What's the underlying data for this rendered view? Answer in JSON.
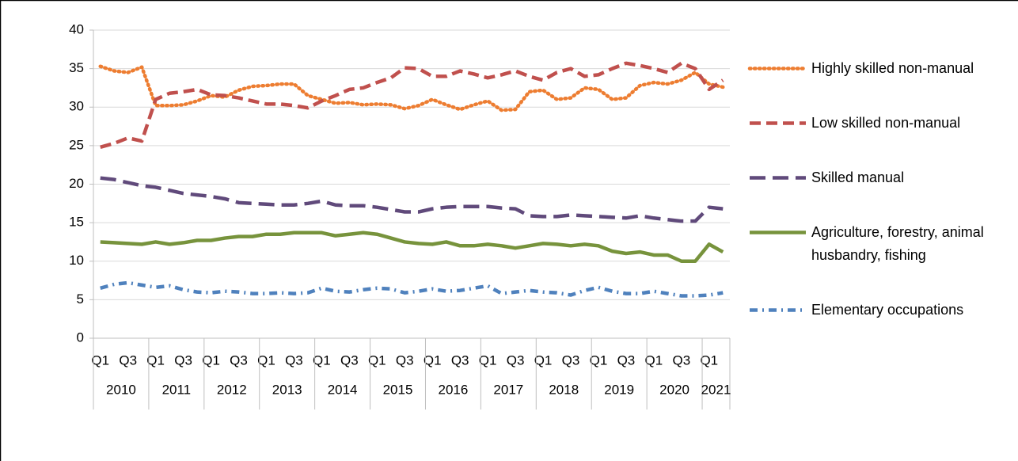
{
  "chart_data": {
    "type": "line",
    "categories": [
      "Q1",
      null,
      "Q3",
      null,
      "Q1",
      null,
      "Q3",
      null,
      "Q1",
      null,
      "Q3",
      null,
      "Q1",
      null,
      "Q3",
      null,
      "Q1",
      null,
      "Q3",
      null,
      "Q1",
      null,
      "Q3",
      null,
      "Q1",
      null,
      "Q3",
      null,
      "Q1",
      null,
      "Q3",
      null,
      "Q1",
      null,
      "Q3",
      null,
      "Q1",
      null,
      "Q3",
      null,
      "Q1",
      null,
      "Q3",
      null,
      "Q1",
      null
    ],
    "category_groups": [
      "2010",
      "2011",
      "2012",
      "2013",
      "2014",
      "2015",
      "2016",
      "2017",
      "2018",
      "2019",
      "2020",
      "2021"
    ],
    "ylim": [
      0,
      40
    ],
    "yticks": [
      0,
      5,
      10,
      15,
      20,
      25,
      30,
      35,
      40
    ],
    "grid": true,
    "legend": "right",
    "series": [
      {
        "name": "Highly skilled non-manual",
        "color": "#ED7D31",
        "dash": "dotted",
        "values": [
          35.3,
          34.7,
          34.5,
          35.2,
          30.2,
          30.2,
          30.3,
          30.8,
          31.5,
          31.3,
          32.2,
          32.7,
          32.8,
          33,
          33,
          31.5,
          31,
          30.5,
          30.6,
          30.3,
          30.4,
          30.3,
          29.8,
          30.2,
          31,
          30.3,
          29.7,
          30.3,
          30.8,
          29.6,
          29.7,
          32,
          32.2,
          31,
          31.2,
          32.5,
          32.3,
          31,
          31.2,
          32.8,
          33.2,
          33,
          33.5,
          34.5,
          33,
          32.6
        ]
      },
      {
        "name": "Low skilled non-manual",
        "color": "#C0504D",
        "dash": "dashed",
        "values": [
          24.8,
          25.3,
          26,
          25.6,
          31,
          31.8,
          32,
          32.3,
          31.6,
          31.5,
          31.2,
          30.8,
          30.4,
          30.4,
          30.2,
          29.9,
          30.8,
          31.5,
          32.3,
          32.5,
          33.2,
          33.8,
          35.1,
          35,
          34,
          34,
          34.7,
          34.3,
          33.8,
          34.2,
          34.7,
          34,
          33.5,
          34.5,
          35,
          34,
          34.2,
          35,
          35.7,
          35.4,
          35,
          34.5,
          35.7,
          35,
          32.3,
          33.5
        ]
      },
      {
        "name": "Skilled manual",
        "color": "#604A7B",
        "dash": "longdash",
        "values": [
          20.8,
          20.6,
          20.2,
          19.8,
          19.6,
          19.2,
          18.8,
          18.6,
          18.4,
          18.1,
          17.6,
          17.5,
          17.4,
          17.3,
          17.3,
          17.5,
          17.8,
          17.3,
          17.2,
          17.2,
          17,
          16.7,
          16.4,
          16.4,
          16.8,
          17,
          17.1,
          17.1,
          17.1,
          16.9,
          16.8,
          15.9,
          15.8,
          15.8,
          16,
          15.9,
          15.8,
          15.7,
          15.6,
          15.9,
          15.6,
          15.4,
          15.2,
          15.2,
          17,
          16.8
        ]
      },
      {
        "name": "Agriculture, forestry, animal husbandry, fishing",
        "color": "#77933C",
        "dash": "solid",
        "values": [
          12.5,
          12.4,
          12.3,
          12.2,
          12.5,
          12.2,
          12.4,
          12.7,
          12.7,
          13,
          13.2,
          13.2,
          13.5,
          13.5,
          13.7,
          13.7,
          13.7,
          13.3,
          13.5,
          13.7,
          13.5,
          13,
          12.5,
          12.3,
          12.2,
          12.5,
          12,
          12,
          12.2,
          12,
          11.7,
          12,
          12.3,
          12.2,
          12,
          12.2,
          12,
          11.3,
          11,
          11.2,
          10.8,
          10.8,
          10,
          10,
          12.2,
          11.2
        ]
      },
      {
        "name": "Elementary occupations",
        "color": "#4F81BD",
        "dash": "dashdot",
        "values": [
          6.5,
          7,
          7.2,
          6.9,
          6.6,
          6.8,
          6.3,
          6,
          5.9,
          6.1,
          6,
          5.8,
          5.8,
          5.9,
          5.8,
          5.9,
          6.5,
          6.1,
          6,
          6.3,
          6.5,
          6.4,
          5.9,
          6.1,
          6.4,
          6.1,
          6.2,
          6.5,
          6.8,
          5.8,
          6,
          6.2,
          6,
          5.9,
          5.6,
          6.2,
          6.6,
          6.1,
          5.8,
          5.8,
          6.1,
          5.8,
          5.5,
          5.5,
          5.6,
          5.9
        ]
      }
    ]
  }
}
